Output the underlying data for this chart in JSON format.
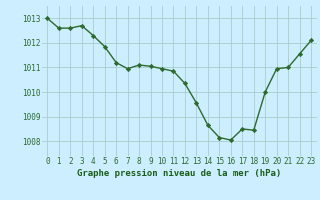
{
  "x": [
    0,
    1,
    2,
    3,
    4,
    5,
    6,
    7,
    8,
    9,
    10,
    11,
    12,
    13,
    14,
    15,
    16,
    17,
    18,
    19,
    20,
    21,
    22,
    23
  ],
  "y": [
    1013.0,
    1012.6,
    1012.6,
    1012.7,
    1012.3,
    1011.85,
    1011.2,
    1010.95,
    1011.1,
    1011.05,
    1010.95,
    1010.85,
    1010.35,
    1009.55,
    1008.65,
    1008.15,
    1008.05,
    1008.5,
    1008.45,
    1010.0,
    1010.95,
    1011.0,
    1011.55,
    1012.1
  ],
  "line_color": "#2d6a2d",
  "marker": "D",
  "marker_size": 2.2,
  "bg_color": "#cceeff",
  "grid_color": "#aacccc",
  "xlabel": "Graphe pression niveau de la mer (hPa)",
  "xlabel_color": "#1a5c1a",
  "xlabel_fontsize": 6.5,
  "ylabel_ticks": [
    1008,
    1009,
    1010,
    1011,
    1012,
    1013
  ],
  "ylim": [
    1007.4,
    1013.5
  ],
  "xlim": [
    -0.5,
    23.5
  ],
  "tick_color": "#2d6a2d",
  "tick_fontsize": 5.5,
  "linewidth": 1.0
}
